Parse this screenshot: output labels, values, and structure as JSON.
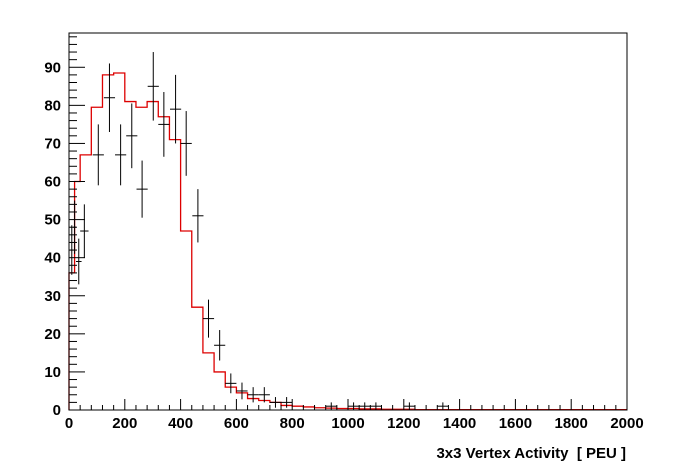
{
  "chart_data": {
    "type": "histogram",
    "xlabel": "3x3 Vertex Activity  [ PEU ]",
    "ylabel": "",
    "title": "",
    "xlim": [
      0,
      2000
    ],
    "ylim": [
      0,
      99
    ],
    "grid": false,
    "legend": "none",
    "x_tick_labels": [
      "0",
      "200",
      "400",
      "600",
      "800",
      "1000",
      "1200",
      "1400",
      "1600",
      "1800",
      "2000"
    ],
    "y_tick_labels": [
      "0",
      "10",
      "20",
      "30",
      "40",
      "50",
      "60",
      "70",
      "80",
      "90"
    ],
    "colors": {
      "data": "#000000",
      "prediction": "#dd0000",
      "frame": "#000000"
    },
    "series": [
      {
        "style": "points-with-errors",
        "color": "#000000",
        "points": [
          {
            "x": 10,
            "y": 42,
            "yerr": 6.5,
            "xerr": 5
          },
          {
            "x": 20,
            "y": 48,
            "yerr": 7,
            "xerr": 5
          },
          {
            "x": 35,
            "y": 39,
            "yerr": 6,
            "xerr": 10
          },
          {
            "x": 55,
            "y": 47,
            "yerr": 7,
            "xerr": 15
          },
          {
            "x": 105,
            "y": 67,
            "yerr": 8,
            "xerr": 20
          },
          {
            "x": 145,
            "y": 82,
            "yerr": 9,
            "xerr": 20
          },
          {
            "x": 185,
            "y": 67,
            "yerr": 8,
            "xerr": 20
          },
          {
            "x": 225,
            "y": 72,
            "yerr": 8.5,
            "xerr": 20
          },
          {
            "x": 262,
            "y": 58,
            "yerr": 7.5,
            "xerr": 20
          },
          {
            "x": 302,
            "y": 85,
            "yerr": 9,
            "xerr": 20
          },
          {
            "x": 340,
            "y": 75,
            "yerr": 8.5,
            "xerr": 20
          },
          {
            "x": 382,
            "y": 79,
            "yerr": 9,
            "xerr": 20
          },
          {
            "x": 420,
            "y": 70,
            "yerr": 8.5,
            "xerr": 20
          },
          {
            "x": 462,
            "y": 51,
            "yerr": 7,
            "xerr": 20
          },
          {
            "x": 500,
            "y": 24,
            "yerr": 5,
            "xerr": 20
          },
          {
            "x": 540,
            "y": 17,
            "yerr": 4,
            "xerr": 20
          },
          {
            "x": 580,
            "y": 7,
            "yerr": 2.6,
            "xerr": 20
          },
          {
            "x": 620,
            "y": 5,
            "yerr": 2.2,
            "xerr": 20
          },
          {
            "x": 660,
            "y": 4,
            "yerr": 2,
            "xerr": 20
          },
          {
            "x": 700,
            "y": 4,
            "yerr": 2,
            "xerr": 20
          },
          {
            "x": 740,
            "y": 2,
            "yerr": 1.4,
            "xerr": 20
          },
          {
            "x": 780,
            "y": 2,
            "yerr": 1.4,
            "xerr": 20
          },
          {
            "x": 940,
            "y": 1,
            "yerr": 1,
            "xerr": 20
          },
          {
            "x": 1020,
            "y": 1,
            "yerr": 1,
            "xerr": 20
          },
          {
            "x": 1060,
            "y": 1,
            "yerr": 1,
            "xerr": 20
          },
          {
            "x": 1100,
            "y": 1,
            "yerr": 1,
            "xerr": 20
          },
          {
            "x": 1220,
            "y": 1,
            "yerr": 1,
            "xerr": 20
          },
          {
            "x": 1340,
            "y": 1,
            "yerr": 1,
            "xerr": 20
          }
        ]
      },
      {
        "style": "step",
        "color": "#dd0000",
        "edges": [
          0,
          20,
          40,
          80,
          120,
          160,
          200,
          240,
          280,
          320,
          360,
          400,
          440,
          480,
          520,
          560,
          600,
          640,
          680,
          720,
          760,
          800,
          840,
          880,
          920,
          960,
          1000,
          1040,
          1080,
          1120,
          1160,
          1200,
          1240,
          2000
        ],
        "values": [
          36,
          60,
          67,
          79.5,
          88,
          88.5,
          81,
          79.5,
          81,
          77,
          71,
          47,
          27,
          15,
          10,
          6,
          4.5,
          3,
          2.5,
          2,
          1.2,
          1,
          0.8,
          0.6,
          0.5,
          0.4,
          0.4,
          0.3,
          0.3,
          0.2,
          0.2,
          0.2,
          0.1
        ]
      }
    ]
  }
}
